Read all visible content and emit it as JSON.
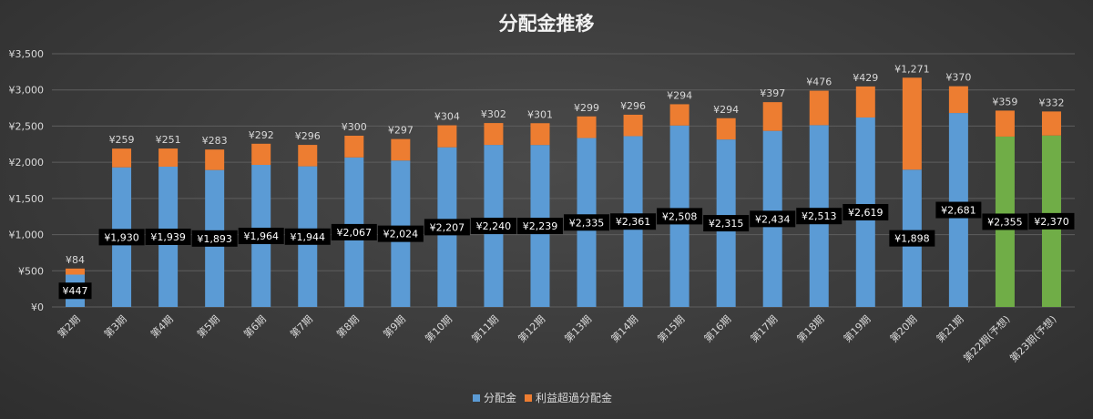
{
  "chart_data": {
    "type": "bar",
    "stacked": true,
    "title": "分配金推移",
    "categories": [
      "第2期",
      "第3期",
      "第4期",
      "第5期",
      "第6期",
      "第7期",
      "第8期",
      "第9期",
      "第10期",
      "第11期",
      "第12期",
      "第13期",
      "第14期",
      "第15期",
      "第16期",
      "第17期",
      "第18期",
      "第19期",
      "第20期",
      "第21期",
      "第22期(予想)",
      "第23期(予想)"
    ],
    "series": [
      {
        "name": "分配金",
        "color": "#5b9bd5",
        "values": [
          447,
          1930,
          1939,
          1893,
          1964,
          1944,
          2067,
          2024,
          2207,
          2240,
          2239,
          2335,
          2361,
          2508,
          2315,
          2434,
          2513,
          2619,
          1898,
          2681,
          2355,
          2370
        ],
        "labels": [
          "¥447",
          "¥1,930",
          "¥1,939",
          "¥1,893",
          "¥1,964",
          "¥1,944",
          "¥2,067",
          "¥2,024",
          "¥2,207",
          "¥2,240",
          "¥2,239",
          "¥2,335",
          "¥2,361",
          "¥2,508",
          "¥2,315",
          "¥2,434",
          "¥2,513",
          "¥2,619",
          "¥1,898",
          "¥2,681",
          "¥2,355",
          "¥2,370"
        ]
      },
      {
        "name": "利益超過分配金",
        "color": "#ed7d31",
        "values": [
          84,
          259,
          251,
          283,
          292,
          296,
          300,
          297,
          304,
          302,
          301,
          299,
          296,
          294,
          294,
          397,
          476,
          429,
          1271,
          370,
          359,
          332
        ],
        "labels": [
          "¥84",
          "¥259",
          "¥251",
          "¥283",
          "¥292",
          "¥296",
          "¥300",
          "¥297",
          "¥304",
          "¥302",
          "¥301",
          "¥299",
          "¥296",
          "¥294",
          "¥294",
          "¥397",
          "¥476",
          "¥429",
          "¥1,271",
          "¥370",
          "¥359",
          "¥332"
        ]
      }
    ],
    "forecast_color": "#70ad47",
    "forecast_categories": [
      "第22期(予想)",
      "第23期(予想)"
    ],
    "ylim": [
      0,
      3500
    ],
    "yticks": [
      0,
      500,
      1000,
      1500,
      2000,
      2500,
      3000,
      3500
    ],
    "ytick_labels": [
      "¥0",
      "¥500",
      "¥1,000",
      "¥1,500",
      "¥2,000",
      "¥2,500",
      "¥3,000",
      "¥3,500"
    ],
    "grid": true,
    "legend_position": "bottom"
  }
}
